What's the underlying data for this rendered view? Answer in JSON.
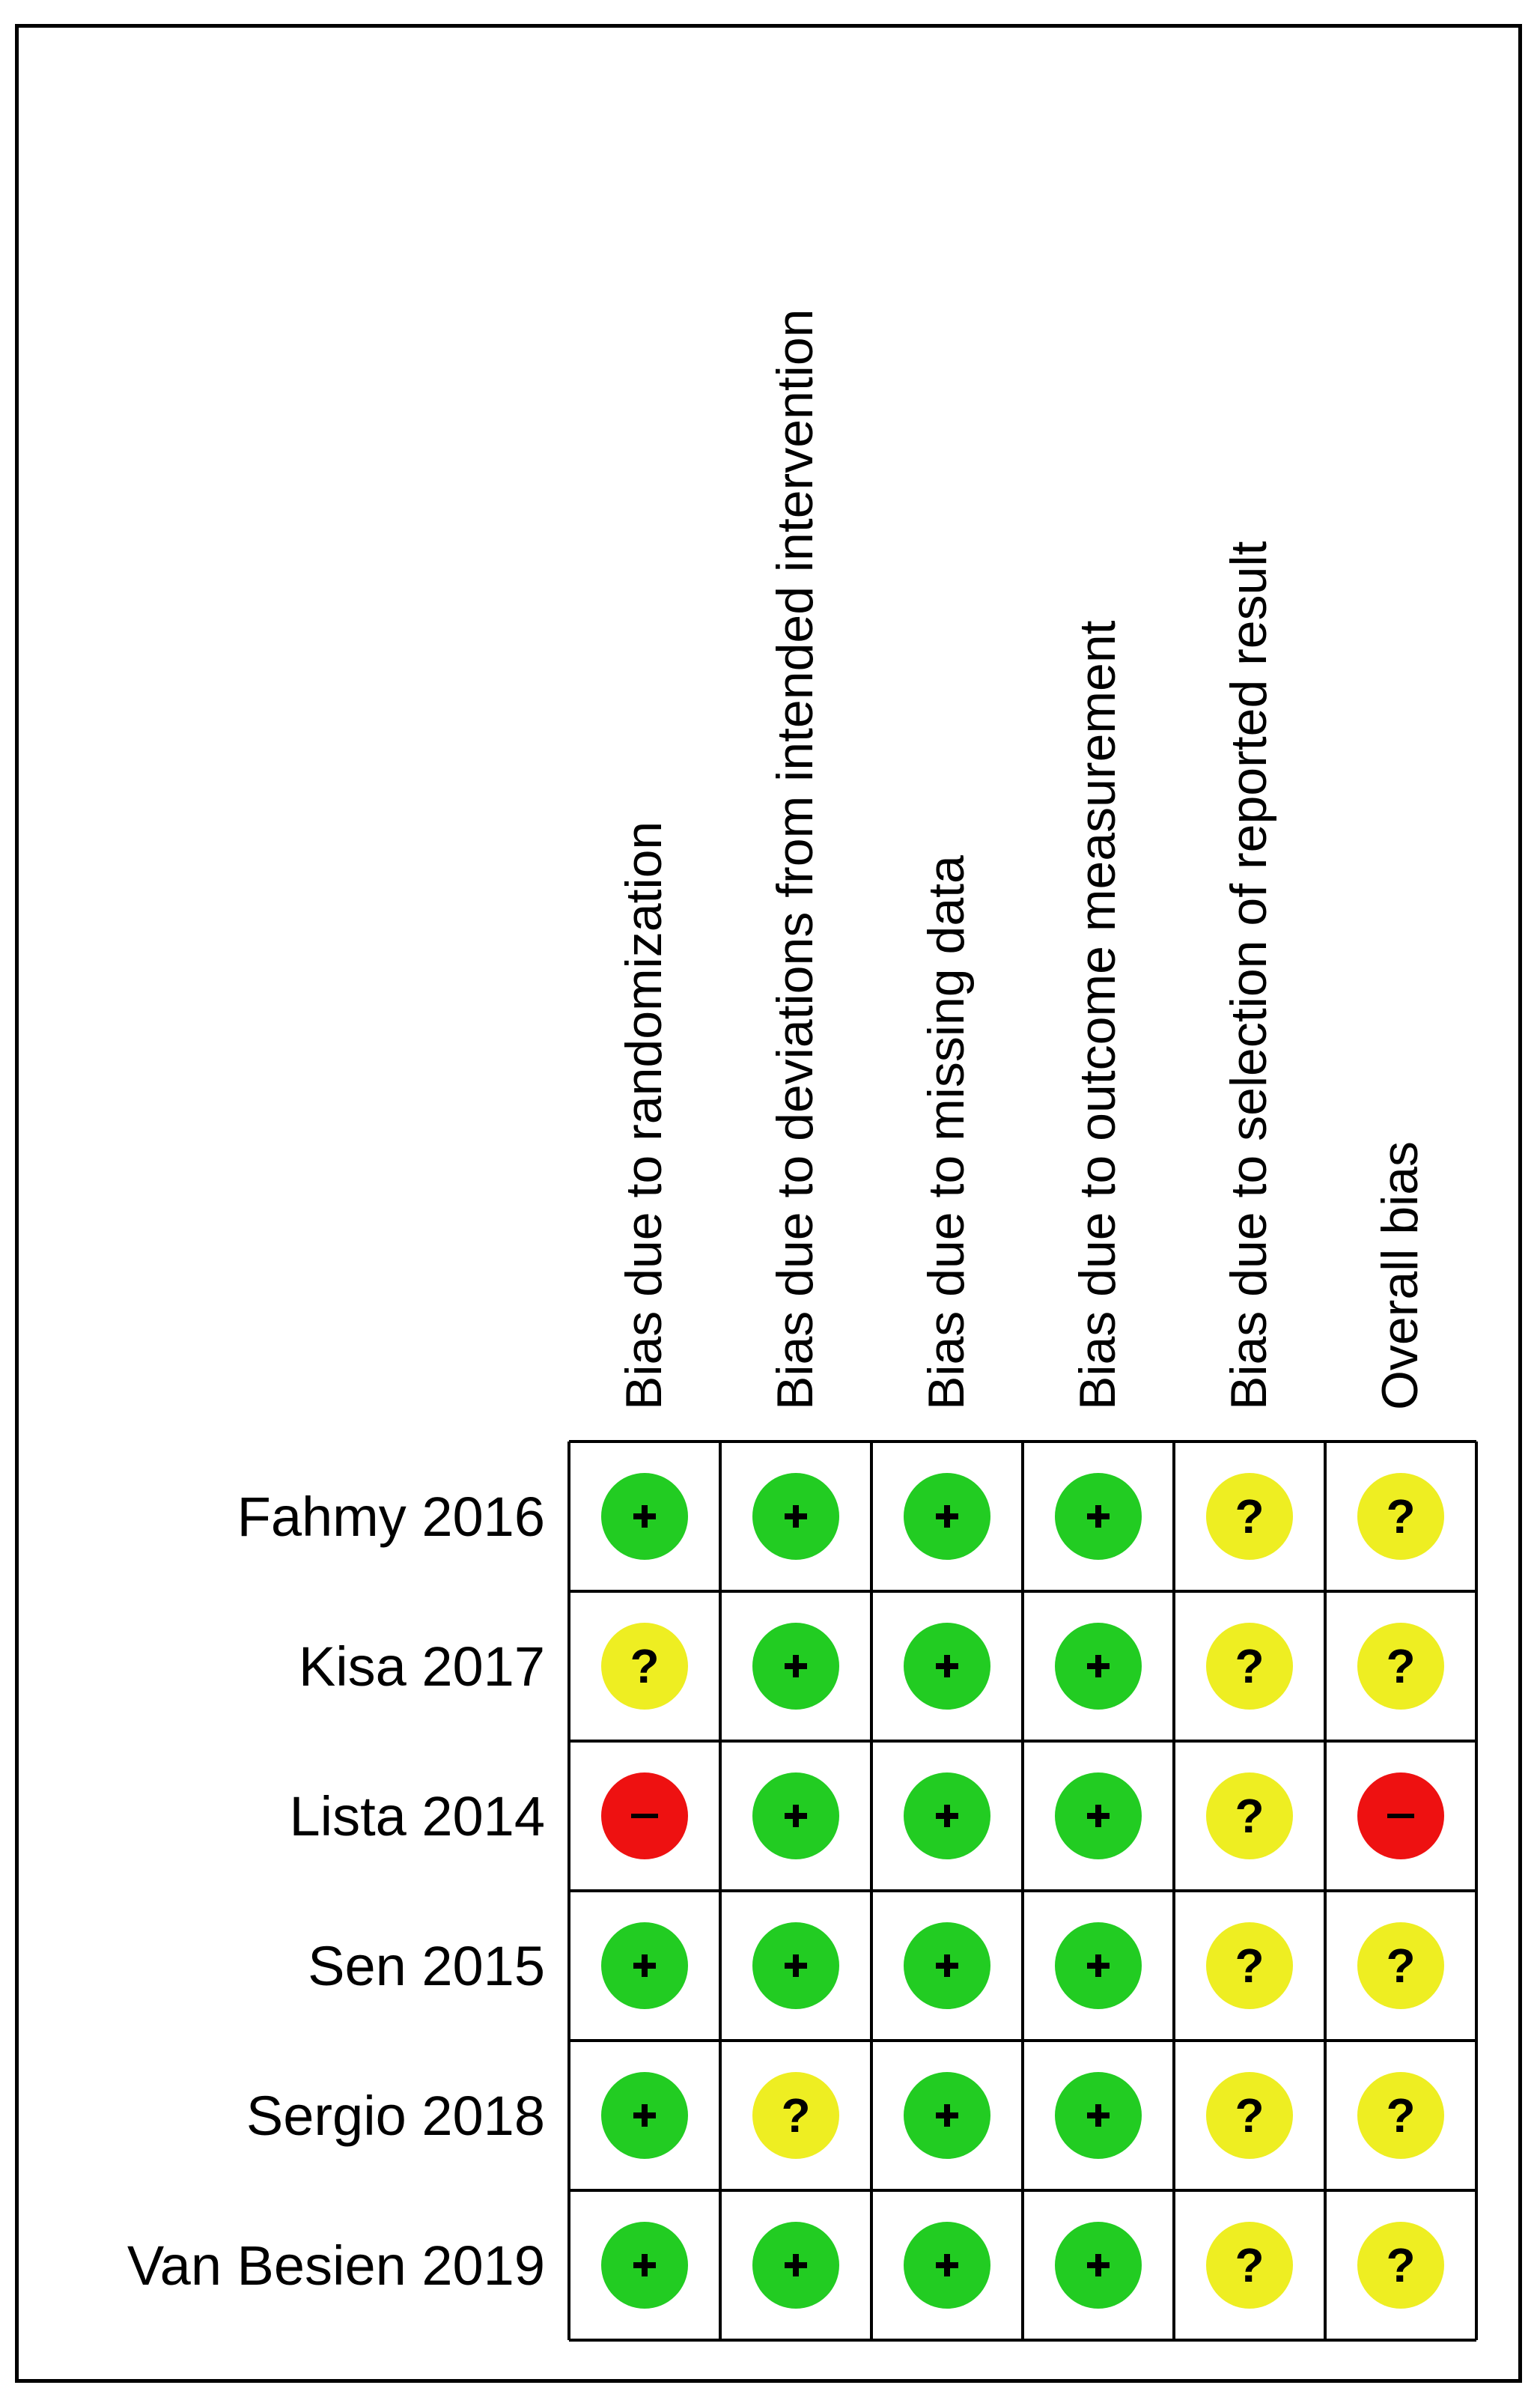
{
  "chart_data": {
    "type": "table",
    "columns": [
      "Bias due to randomization",
      "Bias due to deviations from intended intervention",
      "Bias due to missing data",
      "Bias due to outcome measurement",
      "Bias due to selection of reported result",
      "Overall bias"
    ],
    "rows": [
      {
        "study": "Fahmy 2016",
        "judgements": [
          "low",
          "low",
          "low",
          "low",
          "unclear",
          "unclear"
        ]
      },
      {
        "study": "Kisa 2017",
        "judgements": [
          "unclear",
          "low",
          "low",
          "low",
          "unclear",
          "unclear"
        ]
      },
      {
        "study": "Lista 2014",
        "judgements": [
          "high",
          "low",
          "low",
          "low",
          "unclear",
          "high"
        ]
      },
      {
        "study": "Sen 2015",
        "judgements": [
          "low",
          "low",
          "low",
          "low",
          "unclear",
          "unclear"
        ]
      },
      {
        "study": "Sergio 2018",
        "judgements": [
          "low",
          "unclear",
          "low",
          "low",
          "unclear",
          "unclear"
        ]
      },
      {
        "study": "Van Besien 2019",
        "judgements": [
          "low",
          "low",
          "low",
          "low",
          "unclear",
          "unclear"
        ]
      }
    ],
    "judgement_styles": {
      "low": {
        "color": "#22cc22",
        "symbol": "+"
      },
      "unclear": {
        "color": "#eeee22",
        "symbol": "?"
      },
      "high": {
        "color": "#ee1111",
        "symbol": "−"
      }
    }
  }
}
